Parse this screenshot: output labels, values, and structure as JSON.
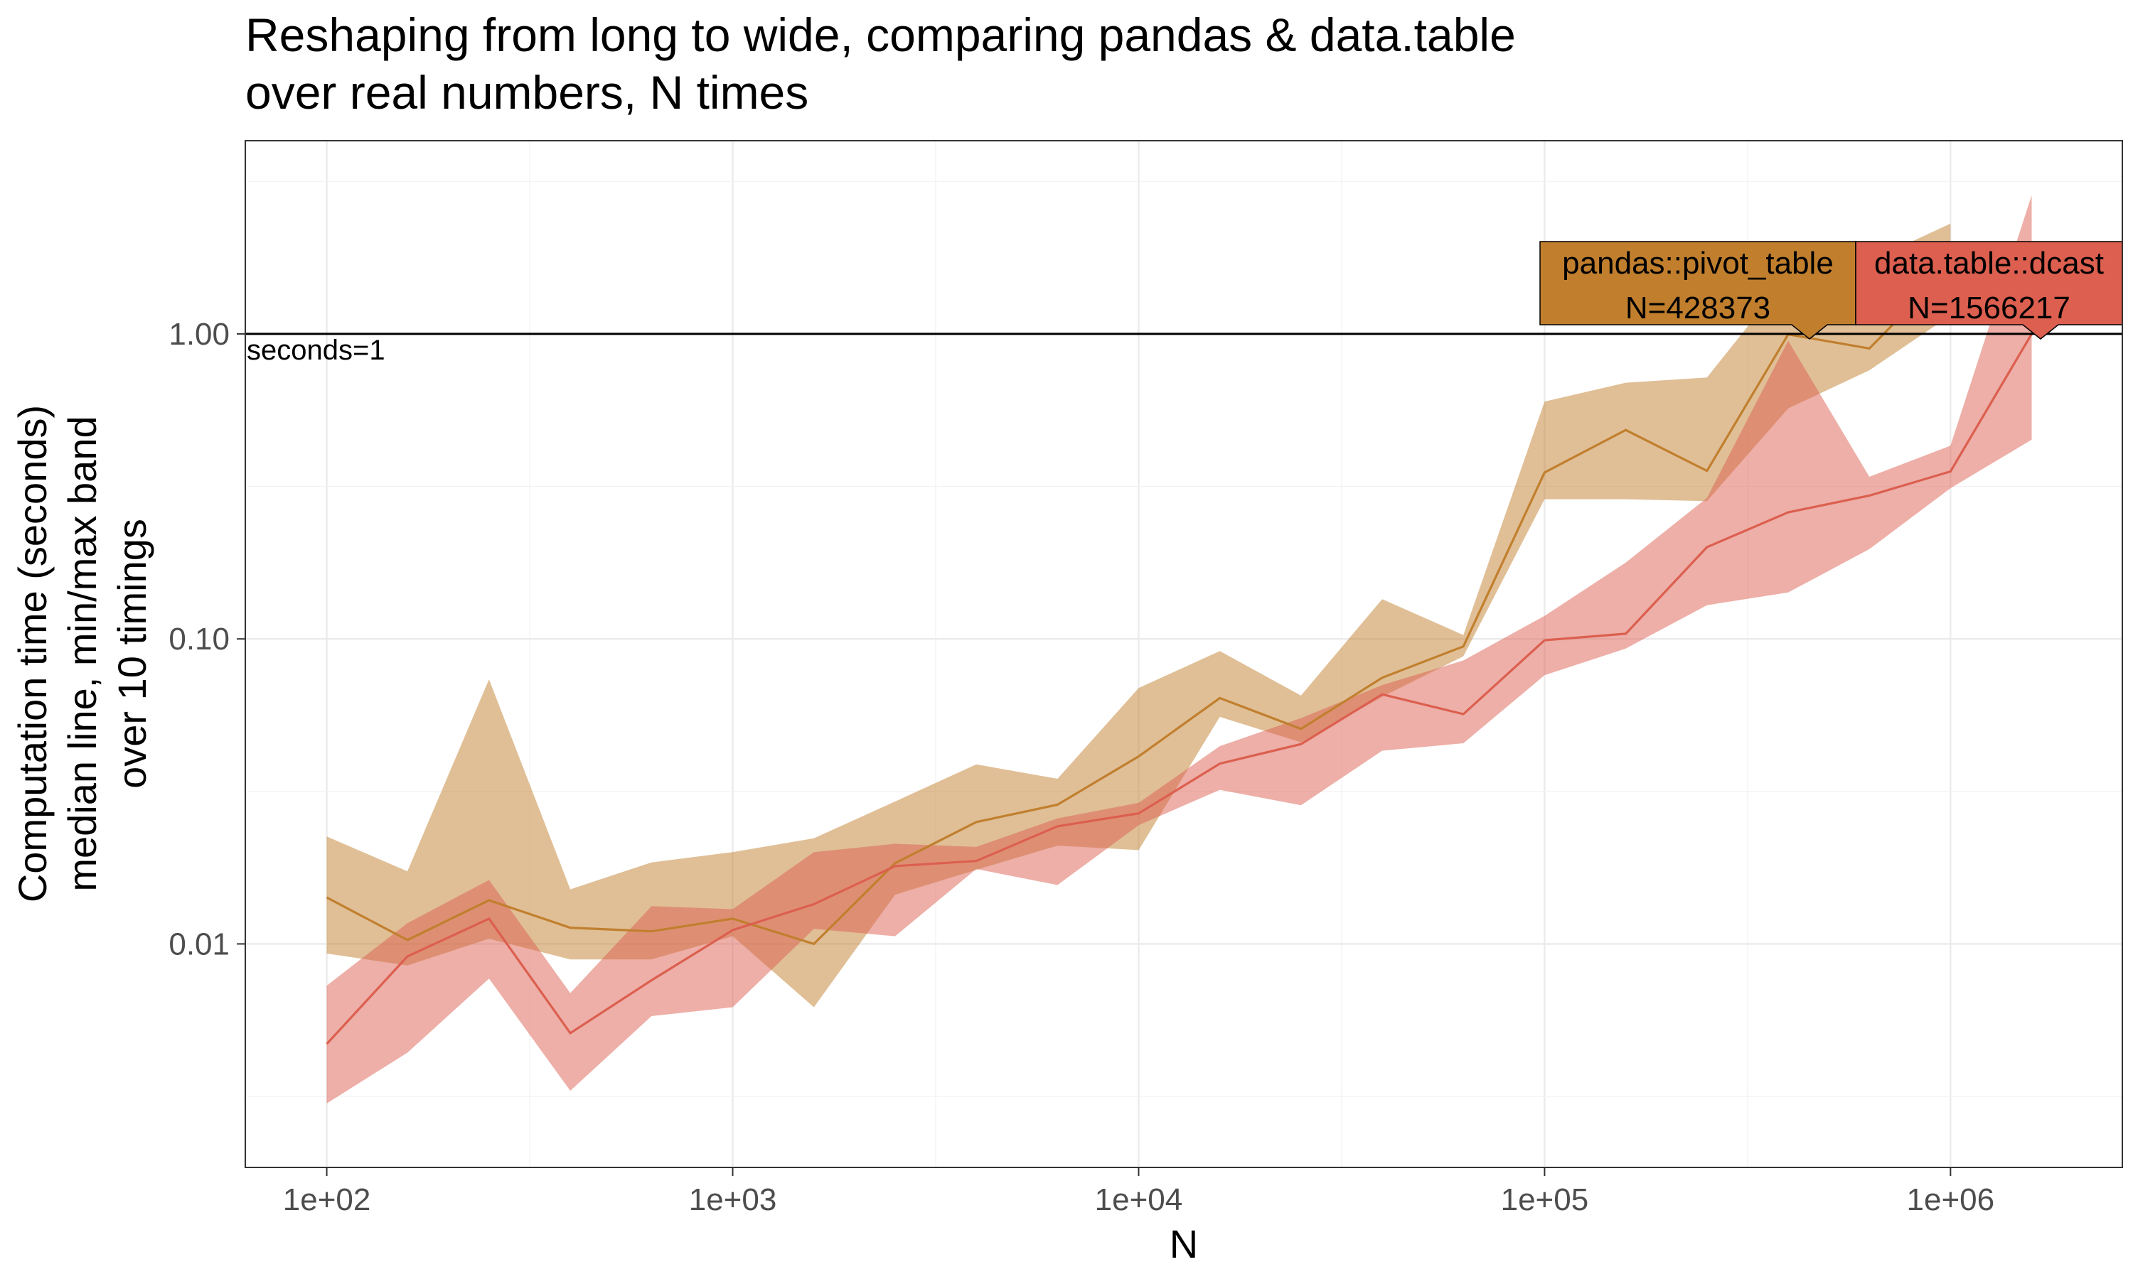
{
  "chart_data": {
    "type": "line",
    "title": [
      "Reshaping from long to wide, comparing pandas & data.table",
      "over real numbers, N times"
    ],
    "xlabel": "N",
    "ylabel": [
      "Computation time (seconds)",
      "median line, min/max band",
      "over 10 timings"
    ],
    "x_scale": "log10",
    "y_scale": "log10",
    "xlim": [
      63,
      2650000
    ],
    "ylim": [
      0.00185,
      4.3
    ],
    "x_ticks": [
      {
        "value": 100,
        "label": "1e+02"
      },
      {
        "value": 1000,
        "label": "1e+03"
      },
      {
        "value": 10000,
        "label": "1e+04"
      },
      {
        "value": 100000,
        "label": "1e+05"
      },
      {
        "value": 1000000,
        "label": "1e+06"
      }
    ],
    "y_ticks": [
      {
        "value": 0.01,
        "label": "0.01"
      },
      {
        "value": 0.1,
        "label": "0.10"
      },
      {
        "value": 1,
        "label": "1.00"
      }
    ],
    "grid": true,
    "reference_line": {
      "y": 1,
      "label": "seconds=1"
    },
    "x": [
      100,
      158,
      251,
      398,
      631,
      1000,
      1585,
      2512,
      3981,
      6310,
      10000,
      15849,
      25119,
      39811,
      63096,
      100000,
      158489,
      251189,
      398107,
      630957,
      1000000,
      1584893
    ],
    "series": [
      {
        "name": "pandas::pivot_table",
        "color": "#C17F2E",
        "median": [
          0.0142,
          0.0103,
          0.0139,
          0.0113,
          0.011,
          0.0121,
          0.01,
          0.0184,
          0.0251,
          0.0286,
          0.0412,
          0.064,
          0.0507,
          0.0746,
          0.0945,
          0.3514,
          0.484,
          0.3556,
          0.9962,
          0.896,
          1.67
        ],
        "min": [
          0.0093,
          0.0085,
          0.0104,
          0.0089,
          0.0089,
          0.0106,
          0.0062,
          0.0145,
          0.0175,
          0.021,
          0.0203,
          0.0555,
          0.0458,
          0.0646,
          0.0877,
          0.287,
          0.287,
          0.283,
          0.57,
          0.76,
          1.15
        ],
        "max": [
          0.0225,
          0.0173,
          0.0737,
          0.0151,
          0.0185,
          0.02,
          0.0222,
          0.0293,
          0.0388,
          0.0348,
          0.069,
          0.0912,
          0.0652,
          0.135,
          0.103,
          0.6,
          0.692,
          0.72,
          1.55,
          1.73,
          2.3
        ],
        "callout": {
          "line1": "pandas::pivot_table",
          "line2": "N=428373"
        }
      },
      {
        "name": "data.table::dcast",
        "color": "#DC5F4F",
        "median": [
          0.0047,
          0.0091,
          0.0121,
          0.0051,
          0.0076,
          0.0111,
          0.0135,
          0.018,
          0.0187,
          0.0243,
          0.0268,
          0.039,
          0.0452,
          0.0658,
          0.0567,
          0.099,
          0.104,
          0.2,
          0.26,
          0.295,
          0.354,
          1.0
        ],
        "min": [
          0.003,
          0.0044,
          0.0077,
          0.0033,
          0.0058,
          0.0062,
          0.0112,
          0.0106,
          0.0176,
          0.0156,
          0.0245,
          0.032,
          0.0285,
          0.043,
          0.0455,
          0.076,
          0.093,
          0.129,
          0.142,
          0.197,
          0.312,
          0.45
        ],
        "max": [
          0.0073,
          0.0117,
          0.0162,
          0.0069,
          0.0133,
          0.013,
          0.02,
          0.0213,
          0.0208,
          0.0258,
          0.029,
          0.0445,
          0.055,
          0.0706,
          0.085,
          0.119,
          0.178,
          0.29,
          0.95,
          0.34,
          0.43,
          2.85
        ],
        "callout": {
          "line1": "data.table::dcast",
          "line2": "N=1566217"
        }
      }
    ]
  }
}
